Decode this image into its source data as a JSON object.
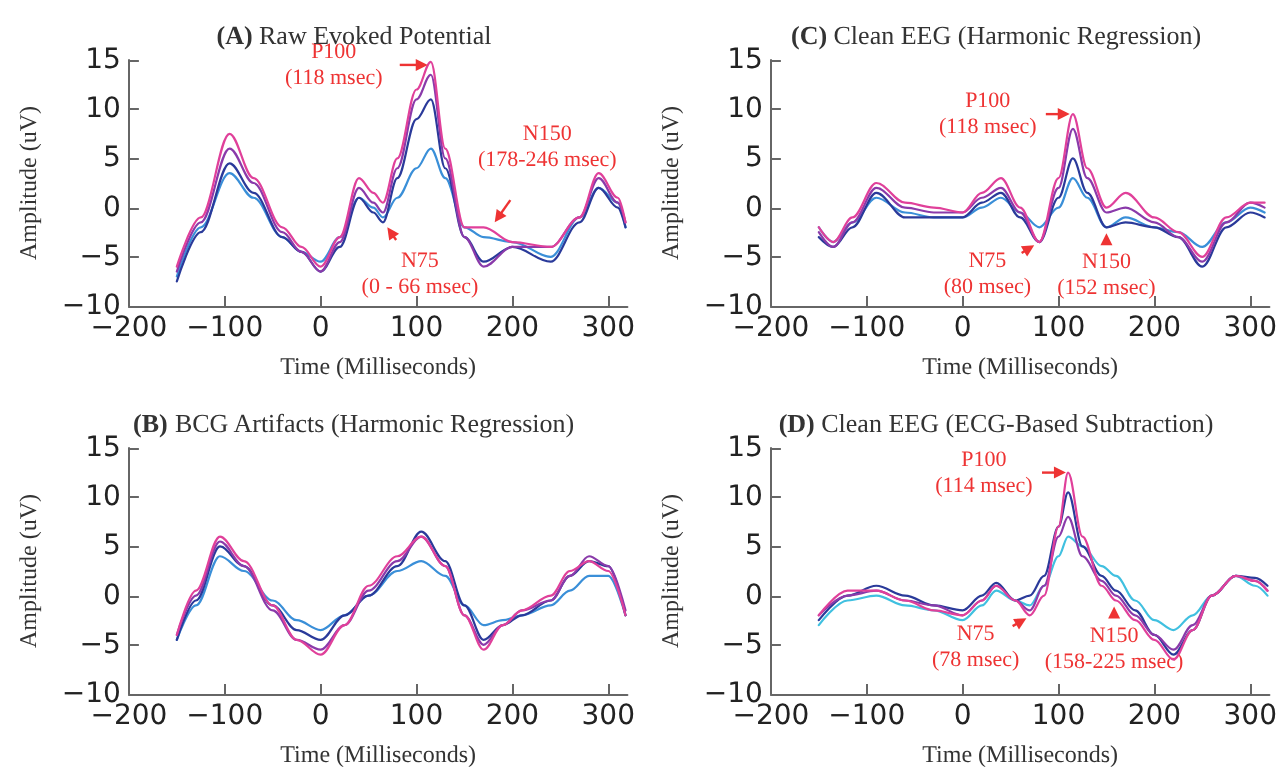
{
  "chart_data": [
    {
      "type": "line",
      "title": "(A) Raw Evoked Potential",
      "xlabel": "Time (Milliseconds)",
      "ylabel": "Amplitude (uV)",
      "xlim": [
        -200,
        320
      ],
      "xticks": [
        -200,
        -100,
        0,
        100,
        200,
        300
      ],
      "ylim": [
        -10,
        15
      ],
      "yticks": [
        -10,
        -5,
        0,
        5,
        10,
        15
      ],
      "grid": false,
      "marker": "none",
      "line_style": "solid",
      "x": [
        -150,
        -125,
        -95,
        -70,
        -40,
        -20,
        0,
        20,
        40,
        55,
        65,
        80,
        100,
        115,
        130,
        150,
        170,
        200,
        240,
        270,
        290,
        310,
        318
      ],
      "series": [
        {
          "color": "#3a8fd8",
          "values": [
            -7,
            -2,
            3.5,
            1,
            -3,
            -4.5,
            -5.5,
            -3,
            1,
            0,
            -1,
            1,
            4,
            6,
            3,
            -2,
            -3,
            -3.5,
            -5,
            -1,
            2,
            0.5,
            -2
          ]
        },
        {
          "color": "#2a3a9a",
          "values": [
            -7.5,
            -2.5,
            4.5,
            1.5,
            -3,
            -4.5,
            -6.5,
            -4,
            1,
            -0.5,
            -1.5,
            3,
            9,
            11,
            4,
            -3,
            -5.5,
            -4,
            -5.5,
            -1.5,
            2,
            0,
            -2
          ]
        },
        {
          "color": "#8a3aaa",
          "values": [
            -6.5,
            -1.5,
            6,
            2.5,
            -2.5,
            -4.5,
            -6.5,
            -3.5,
            2,
            0.5,
            -0.5,
            4,
            11,
            13.5,
            5,
            -3,
            -6,
            -4,
            -4,
            -1,
            3,
            0.5,
            -1.5
          ]
        },
        {
          "color": "#e0409a",
          "values": [
            -6,
            -1,
            7.5,
            3,
            -2,
            -4,
            -6,
            -3,
            3,
            1.5,
            0.5,
            5,
            12,
            14.8,
            6,
            -2,
            -2,
            -3.5,
            -4,
            -1,
            3.5,
            1,
            -1.5
          ]
        }
      ],
      "annotations": [
        {
          "text": "P100\n(118 msec)",
          "x": 118,
          "y": 14.5
        },
        {
          "text": "N150\n(178-246 msec)",
          "x": 178,
          "y": -2
        },
        {
          "text": "N75\n(0 - 66 msec)",
          "x": 66,
          "y": -1.5
        }
      ]
    },
    {
      "type": "line",
      "title": "(C) Clean EEG (Harmonic Regression)",
      "xlabel": "Time (Milliseconds)",
      "ylabel": "Amplitude (uV)",
      "xlim": [
        -200,
        320
      ],
      "xticks": [
        -200,
        -100,
        0,
        100,
        200,
        300
      ],
      "ylim": [
        -10,
        15
      ],
      "yticks": [
        -10,
        -5,
        0,
        5,
        10,
        15
      ],
      "grid": false,
      "marker": "none",
      "line_style": "solid",
      "x": [
        -150,
        -135,
        -115,
        -90,
        -60,
        -30,
        0,
        20,
        40,
        60,
        80,
        100,
        115,
        130,
        150,
        170,
        200,
        225,
        250,
        275,
        300,
        315
      ],
      "series": [
        {
          "color": "#3a8fd8",
          "values": [
            -2,
            -3.5,
            -1.5,
            1,
            -0.5,
            -1,
            -1,
            0,
            1,
            -0.5,
            -2,
            0,
            3,
            1,
            -2,
            -1,
            -2,
            -2.5,
            -4,
            -1.5,
            0,
            -0.5
          ]
        },
        {
          "color": "#2a3a9a",
          "values": [
            -3,
            -4,
            -2,
            1.5,
            -1,
            -1,
            -1,
            0.5,
            1.5,
            -1,
            -3.5,
            1,
            5,
            1.5,
            -2,
            -1.5,
            -2,
            -3,
            -6,
            -2,
            -0.5,
            -1
          ]
        },
        {
          "color": "#8a3aaa",
          "values": [
            -2.5,
            -4,
            -1.5,
            2,
            0,
            -0.5,
            -0.5,
            1,
            2,
            -0.5,
            -3.5,
            2,
            8,
            3,
            -0.5,
            0,
            -1.5,
            -3,
            -5.5,
            -1.5,
            0.5,
            0
          ]
        },
        {
          "color": "#e0409a",
          "values": [
            -2,
            -3.5,
            -1,
            2.5,
            0.5,
            0,
            -0.5,
            1.5,
            3,
            0,
            -3.5,
            3,
            9.5,
            4,
            0,
            1.5,
            -1,
            -2.5,
            -5,
            -1,
            0.5,
            0.5
          ]
        }
      ],
      "annotations": [
        {
          "text": "P100\n(118 msec)",
          "x": 118,
          "y": 9.5
        },
        {
          "text": "N75\n(80 msec)",
          "x": 80,
          "y": -3.5
        },
        {
          "text": "N150\n(152 msec)",
          "x": 150,
          "y": -2
        }
      ]
    },
    {
      "type": "line",
      "title": "(B) BCG Artifacts (Harmonic Regression)",
      "xlabel": "Time (Milliseconds)",
      "ylabel": "Amplitude (uV)",
      "xlim": [
        -200,
        320
      ],
      "xticks": [
        -200,
        -100,
        0,
        100,
        200,
        300
      ],
      "ylim": [
        -10,
        15
      ],
      "yticks": [
        -10,
        -5,
        0,
        5,
        10,
        15
      ],
      "grid": false,
      "marker": "none",
      "line_style": "solid",
      "x": [
        -150,
        -130,
        -105,
        -80,
        -50,
        -25,
        0,
        25,
        50,
        80,
        105,
        130,
        150,
        170,
        190,
        210,
        240,
        260,
        280,
        300,
        318
      ],
      "series": [
        {
          "color": "#3a8fd8",
          "values": [
            -4.5,
            -1,
            4,
            2.5,
            -0.5,
            -2.5,
            -3.5,
            -2,
            0,
            2.5,
            3.5,
            2,
            -1,
            -3,
            -2.5,
            -2,
            -1,
            0.5,
            2,
            2,
            -2
          ]
        },
        {
          "color": "#2a3a9a",
          "values": [
            -4.5,
            -0.5,
            5,
            3,
            -1,
            -3.5,
            -4.5,
            -2,
            0,
            3,
            6.5,
            3.5,
            -1,
            -4.5,
            -3,
            -2,
            -0.5,
            2,
            3.5,
            3,
            -2
          ]
        },
        {
          "color": "#8a3aaa",
          "values": [
            -4,
            0,
            5.5,
            3,
            -1.5,
            -4.5,
            -5.5,
            -3,
            0.5,
            3.5,
            6,
            3,
            -2,
            -5,
            -3,
            -1.5,
            -0.5,
            2,
            4,
            3,
            -1.5
          ]
        },
        {
          "color": "#e0409a",
          "values": [
            -4,
            0.5,
            6,
            3.5,
            -1,
            -4.5,
            -6,
            -3,
            1,
            4,
            6,
            3,
            -2,
            -5.5,
            -3,
            -1.5,
            0,
            2.5,
            3.5,
            2.5,
            -2
          ]
        }
      ]
    },
    {
      "type": "line",
      "title": "(D) Clean EEG (ECG-Based Subtraction)",
      "xlabel": "Time (Milliseconds)",
      "ylabel": "Amplitude (uV)",
      "xlim": [
        -200,
        320
      ],
      "xticks": [
        -200,
        -100,
        0,
        100,
        200,
        300
      ],
      "ylim": [
        -10,
        15
      ],
      "yticks": [
        -10,
        -5,
        0,
        5,
        10,
        15
      ],
      "grid": false,
      "marker": "none",
      "line_style": "solid",
      "x": [
        -150,
        -120,
        -90,
        -60,
        -30,
        0,
        20,
        35,
        55,
        70,
        85,
        100,
        110,
        125,
        145,
        160,
        180,
        200,
        220,
        240,
        260,
        285,
        305,
        318
      ],
      "series": [
        {
          "color": "#40c0e0",
          "values": [
            -3,
            -0.5,
            0,
            -1,
            -1.5,
            -2.5,
            -1,
            0.5,
            -0.5,
            -1,
            1,
            4,
            6,
            5,
            3,
            2,
            -0.5,
            -2.5,
            -3.5,
            -2,
            0,
            2,
            1,
            0
          ]
        },
        {
          "color": "#2a3a9a",
          "values": [
            -2.5,
            0,
            1,
            0,
            -1,
            -1.5,
            0,
            1.3,
            -0.5,
            0,
            2,
            7,
            10.5,
            5,
            2,
            0.5,
            -1.5,
            -4,
            -6,
            -3.5,
            0,
            2,
            1.8,
            1
          ]
        },
        {
          "color": "#8a3aaa",
          "values": [
            -2,
            0,
            0.5,
            -0.5,
            -1,
            -2,
            -0.5,
            1,
            -0.5,
            -1.5,
            1,
            6,
            8,
            4,
            1.5,
            0,
            -2,
            -4,
            -5.5,
            -3,
            0,
            2,
            1.5,
            0.5
          ]
        },
        {
          "color": "#e0409a",
          "values": [
            -2,
            0.5,
            0.5,
            -0.5,
            -1.5,
            -2,
            -0.5,
            1,
            -0.5,
            -2,
            0,
            7,
            12.5,
            6,
            1,
            -0.5,
            -2.5,
            -4.5,
            -6.5,
            -3.5,
            0,
            2,
            1.5,
            0.5
          ]
        }
      ],
      "annotations": [
        {
          "text": "P100\n(114 msec)",
          "x": 114,
          "y": 12.5
        },
        {
          "text": "N75\n(78 msec)",
          "x": 72,
          "y": -2
        },
        {
          "text": "N150\n(158-225 msec)",
          "x": 158,
          "y": -0.5
        }
      ]
    }
  ]
}
